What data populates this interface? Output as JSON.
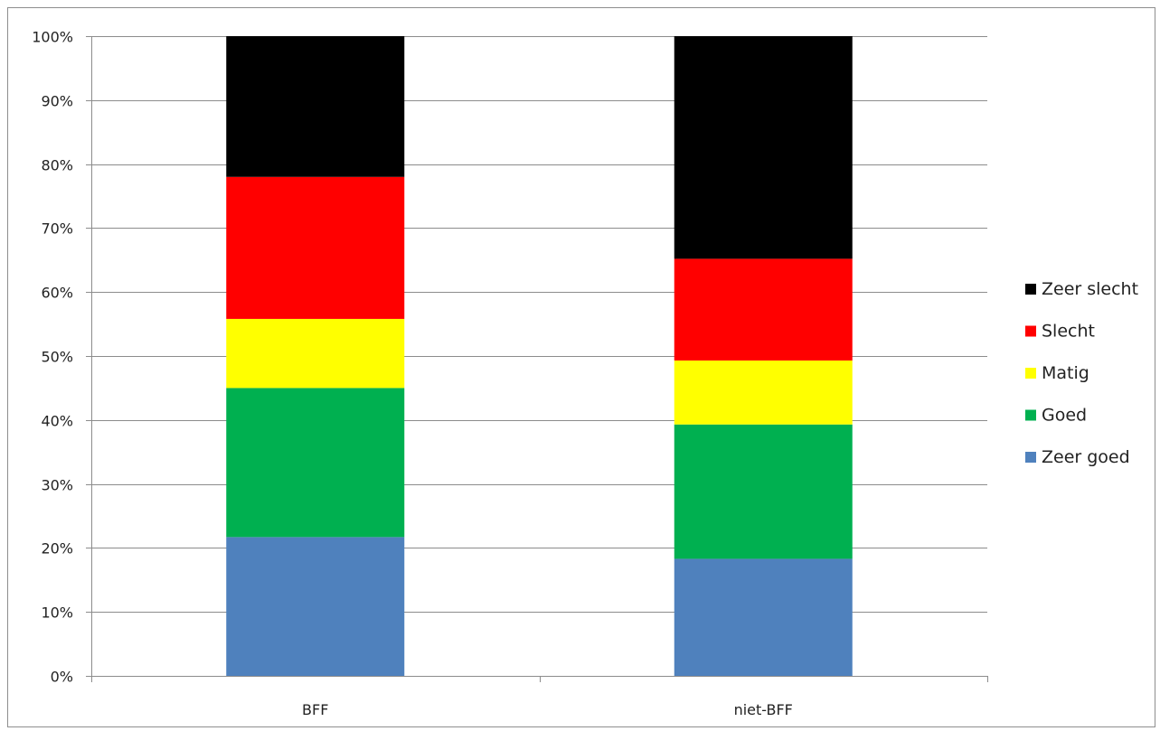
{
  "chart_data": {
    "type": "bar",
    "stacked": true,
    "percent_stacked": true,
    "title": "",
    "xlabel": "",
    "ylabel": "",
    "categories": [
      "BFF",
      "niet-BFF"
    ],
    "series": [
      {
        "name": "Zeer goed",
        "color": "#4f81bd",
        "values": [
          21.7,
          18.3
        ]
      },
      {
        "name": "Goed",
        "color": "#00b050",
        "values": [
          23.3,
          21.0
        ]
      },
      {
        "name": "Matig",
        "color": "#ffff00",
        "values": [
          10.8,
          10.0
        ]
      },
      {
        "name": "Slecht",
        "color": "#ff0000",
        "values": [
          22.2,
          15.9
        ]
      },
      {
        "name": "Zeer slecht",
        "color": "#000000",
        "values": [
          22.0,
          34.8
        ]
      }
    ],
    "ylim": [
      0,
      100
    ],
    "yticks": [
      "0%",
      "10%",
      "20%",
      "30%",
      "40%",
      "50%",
      "60%",
      "70%",
      "80%",
      "90%",
      "100%"
    ],
    "grid": true,
    "legend_position": "right",
    "legend_order": [
      "Zeer slecht",
      "Slecht",
      "Matig",
      "Goed",
      "Zeer goed"
    ]
  }
}
